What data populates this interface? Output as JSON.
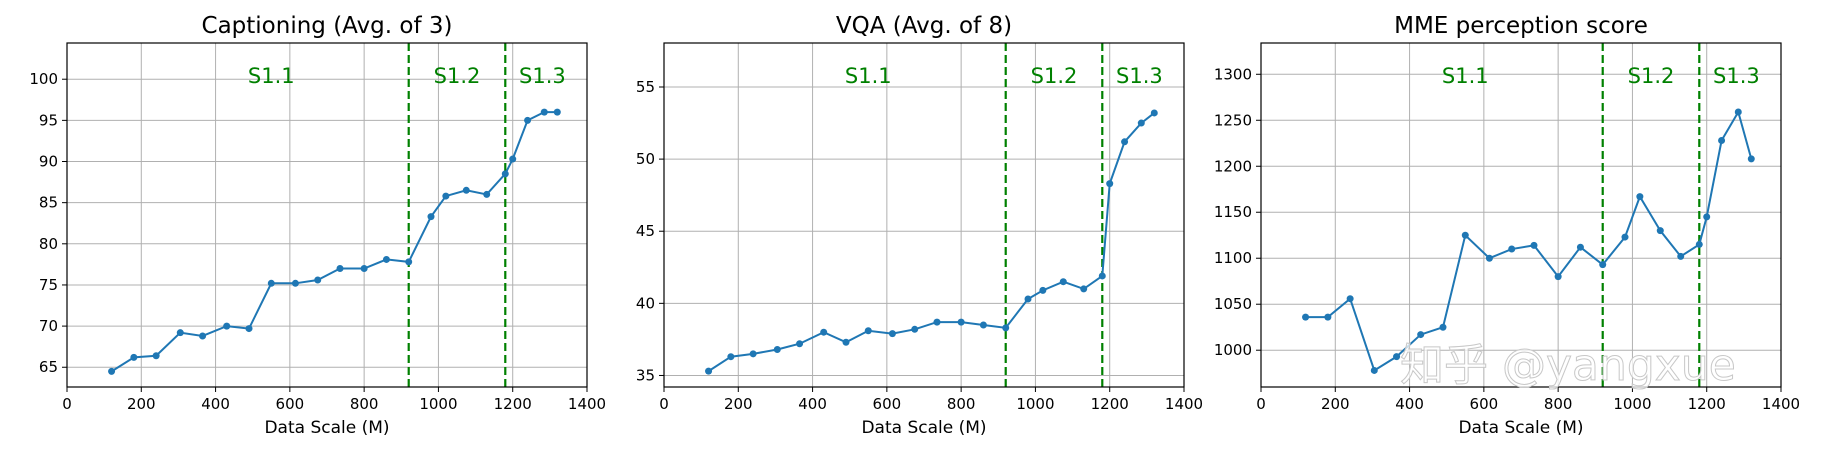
{
  "chart_data": [
    {
      "type": "line",
      "title": "Captioning (Avg. of 3)",
      "xlabel": "Data Scale (M)",
      "ylabel": "",
      "xlim": [
        0,
        1400
      ],
      "ylim": [
        62.6,
        104.4
      ],
      "xticks": [
        0,
        200,
        400,
        600,
        800,
        1000,
        1200,
        1400
      ],
      "yticks": [
        65,
        70,
        75,
        80,
        85,
        90,
        95,
        100
      ],
      "grid": true,
      "color": "#1f77b4",
      "x": [
        120,
        180,
        240,
        305,
        365,
        430,
        490,
        550,
        615,
        675,
        735,
        800,
        860,
        920,
        980,
        1020,
        1075,
        1130,
        1180,
        1200,
        1240,
        1285,
        1320
      ],
      "y": [
        64.5,
        66.2,
        66.4,
        69.2,
        68.8,
        70.0,
        69.7,
        75.2,
        75.2,
        75.6,
        77.0,
        77.0,
        78.1,
        77.8,
        83.3,
        85.8,
        86.5,
        86.0,
        88.5,
        90.3,
        95.0,
        96.0,
        96.0
      ],
      "stage_lines": [
        920,
        1180
      ],
      "stage_line_color": "#008000",
      "stage_labels": [
        {
          "text": "S1.1",
          "x": 550
        },
        {
          "text": "S1.2",
          "x": 1050
        },
        {
          "text": "S1.3",
          "x": 1280
        }
      ]
    },
    {
      "type": "line",
      "title": "VQA (Avg. of 8)",
      "xlabel": "Data Scale (M)",
      "ylabel": "",
      "xlim": [
        0,
        1400
      ],
      "ylim": [
        34.2,
        58.05
      ],
      "xticks": [
        0,
        200,
        400,
        600,
        800,
        1000,
        1200,
        1400
      ],
      "yticks": [
        35,
        40,
        45,
        50,
        55
      ],
      "grid": true,
      "color": "#1f77b4",
      "x": [
        120,
        180,
        240,
        305,
        365,
        430,
        490,
        550,
        615,
        675,
        735,
        800,
        860,
        920,
        980,
        1020,
        1075,
        1130,
        1180,
        1200,
        1240,
        1285,
        1320
      ],
      "y": [
        35.3,
        36.3,
        36.5,
        36.8,
        37.2,
        38.0,
        37.3,
        38.1,
        37.9,
        38.2,
        38.7,
        38.7,
        38.5,
        38.3,
        40.3,
        40.9,
        41.5,
        41.0,
        41.9,
        48.3,
        51.2,
        52.5,
        53.2
      ],
      "stage_lines": [
        920,
        1180
      ],
      "stage_line_color": "#008000",
      "stage_labels": [
        {
          "text": "S1.1",
          "x": 550
        },
        {
          "text": "S1.2",
          "x": 1050
        },
        {
          "text": "S1.3",
          "x": 1280
        }
      ]
    },
    {
      "type": "line",
      "title": "MME perception score",
      "xlabel": "Data Scale (M)",
      "ylabel": "",
      "xlim": [
        0,
        1400
      ],
      "ylim": [
        960,
        1334
      ],
      "xticks": [
        0,
        200,
        400,
        600,
        800,
        1000,
        1200,
        1400
      ],
      "yticks": [
        1000,
        1050,
        1100,
        1150,
        1200,
        1250,
        1300
      ],
      "grid": true,
      "color": "#1f77b4",
      "x": [
        120,
        180,
        240,
        305,
        365,
        430,
        490,
        550,
        615,
        675,
        735,
        800,
        860,
        920,
        980,
        1020,
        1075,
        1130,
        1180,
        1200,
        1240,
        1285,
        1320
      ],
      "y": [
        1036,
        1036,
        1056,
        978,
        993,
        1017,
        1025,
        1125,
        1100,
        1110,
        1114,
        1080,
        1112,
        1093,
        1123,
        1167,
        1130,
        1102,
        1115,
        1145,
        1228,
        1259,
        1208
      ],
      "stage_lines": [
        920,
        1180
      ],
      "stage_line_color": "#008000",
      "stage_labels": [
        {
          "text": "S1.1",
          "x": 550
        },
        {
          "text": "S1.2",
          "x": 1050
        },
        {
          "text": "S1.3",
          "x": 1280
        }
      ]
    }
  ],
  "watermark": "知乎 @yangxue"
}
